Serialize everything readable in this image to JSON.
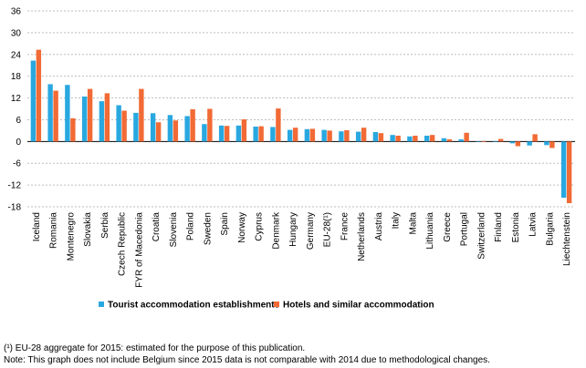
{
  "chart_data": {
    "type": "bar",
    "title": "",
    "xlabel": "",
    "ylabel": "",
    "ylim": [
      -18,
      36
    ],
    "yticks": [
      -18,
      -12,
      -6,
      0,
      6,
      12,
      18,
      24,
      30,
      36
    ],
    "grid": "horizontal dashed",
    "legend_position": "bottom",
    "categories": [
      "Iceland",
      "Romania",
      "Montenegro",
      "Slovakia",
      "Serbia",
      "Czech Republic",
      "FYR of Macedonia",
      "Croatia",
      "Slovenia",
      "Poland",
      "Sweden",
      "Spain",
      "Norway",
      "Cyprus",
      "Denmark",
      "Hungary",
      "Germany",
      "EU-28(¹)",
      "France",
      "Netherlands",
      "Austria",
      "Italy",
      "Malta",
      "Lithuania",
      "Greece",
      "Portugal",
      "Switzerland",
      "Finland",
      "Estonia",
      "Latvia",
      "Bulgaria",
      "Liechtenstein"
    ],
    "series": [
      {
        "name": "Tourist accommodation establishments",
        "color": "#29a8e0",
        "values": [
          22.3,
          15.8,
          15.6,
          12.4,
          11.1,
          10.0,
          7.9,
          7.8,
          7.3,
          7.0,
          4.8,
          4.4,
          4.4,
          4.1,
          4.0,
          3.2,
          3.4,
          3.2,
          2.8,
          2.7,
          2.6,
          1.8,
          1.4,
          1.6,
          0.9,
          0.6,
          -0.1,
          -0.1,
          -0.5,
          -1.1,
          -1.0,
          -15.5
        ]
      },
      {
        "name": "Hotels and similar accommodation",
        "color": "#f26a35",
        "values": [
          25.3,
          14.0,
          6.4,
          14.5,
          13.3,
          8.5,
          14.5,
          5.3,
          5.8,
          8.9,
          9.0,
          4.3,
          6.1,
          4.2,
          9.1,
          3.8,
          3.5,
          3.0,
          3.1,
          3.8,
          2.3,
          1.6,
          1.6,
          1.8,
          0.6,
          2.4,
          0.1,
          0.7,
          -1.3,
          2.0,
          -1.8,
          -17.0
        ]
      }
    ]
  },
  "footnotes": {
    "line1": "(¹) EU-28 aggregate for 2015: estimated for the purpose of this publication.",
    "line2": "Note: This graph does not include Belgium since 2015 data is not comparable with 2014 due to methodological changes."
  }
}
